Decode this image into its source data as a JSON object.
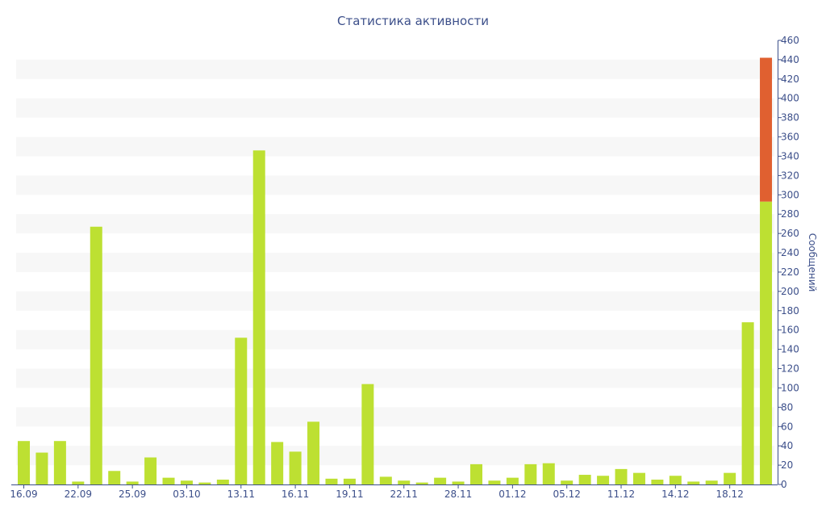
{
  "chart_data": {
    "type": "bar",
    "title": "Статистика активности",
    "xlabel": "",
    "ylabel": "Сообщений",
    "ylim": [
      0,
      460
    ],
    "y_ticks": [
      0,
      20,
      40,
      60,
      80,
      100,
      120,
      140,
      160,
      180,
      200,
      220,
      240,
      260,
      280,
      300,
      320,
      340,
      360,
      380,
      400,
      420,
      440,
      460
    ],
    "y_axis_side": "right",
    "x_tick_labels": [
      {
        "label": "16.09",
        "index": 0
      },
      {
        "label": "22.09",
        "index": 3
      },
      {
        "label": "25.09",
        "index": 6
      },
      {
        "label": "03.10",
        "index": 9
      },
      {
        "label": "13.11",
        "index": 12
      },
      {
        "label": "16.11",
        "index": 15
      },
      {
        "label": "19.11",
        "index": 18
      },
      {
        "label": "22.11",
        "index": 21
      },
      {
        "label": "28.11",
        "index": 24
      },
      {
        "label": "01.12",
        "index": 27
      },
      {
        "label": "05.12",
        "index": 30
      },
      {
        "label": "11.12",
        "index": 33
      },
      {
        "label": "14.12",
        "index": 36
      },
      {
        "label": "18.12",
        "index": 39
      }
    ],
    "colors": {
      "primary": "#bde032",
      "secondary": "#e06030",
      "text": "#3c4f8a",
      "band": "#f7f7f7"
    },
    "series": [
      {
        "values": [
          45,
          33,
          45,
          3,
          267,
          14,
          3,
          28,
          7,
          4,
          2,
          5,
          152,
          346,
          44,
          34,
          65,
          6,
          6,
          104,
          8,
          4,
          2,
          7,
          3,
          21,
          4,
          7,
          21,
          22,
          4,
          10,
          9,
          16,
          12,
          5,
          9,
          3,
          4,
          12,
          168,
          293
        ]
      },
      {
        "values": [
          0,
          0,
          0,
          0,
          0,
          0,
          0,
          0,
          0,
          0,
          0,
          0,
          0,
          0,
          0,
          0,
          0,
          0,
          0,
          0,
          0,
          0,
          0,
          0,
          0,
          0,
          0,
          0,
          0,
          0,
          0,
          0,
          0,
          0,
          0,
          0,
          0,
          0,
          0,
          0,
          0,
          149
        ]
      }
    ]
  }
}
